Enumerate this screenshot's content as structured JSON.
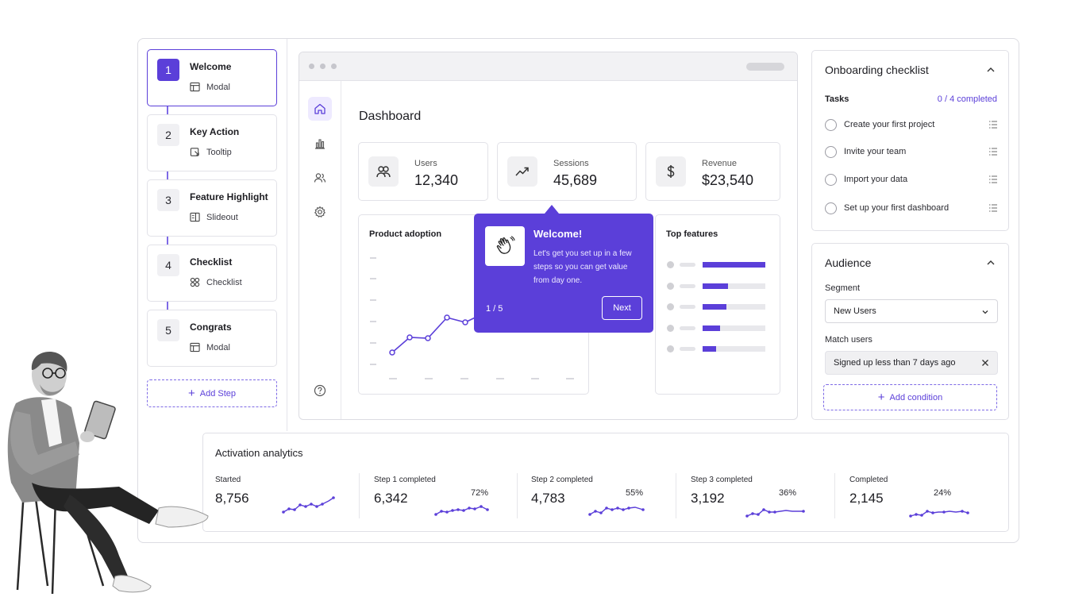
{
  "steps": [
    {
      "num": "1",
      "title": "Welcome",
      "type": "Modal",
      "active": true
    },
    {
      "num": "2",
      "title": "Key Action",
      "type": "Tooltip"
    },
    {
      "num": "3",
      "title": "Feature Highlight",
      "type": "Slideout"
    },
    {
      "num": "4",
      "title": "Checklist",
      "type": "Checklist"
    },
    {
      "num": "5",
      "title": "Congrats",
      "type": "Modal"
    }
  ],
  "add_step_label": "Add Step",
  "dashboard": {
    "title": "Dashboard",
    "stats": [
      {
        "label": "Users",
        "value": "12,340",
        "icon": "users-icon"
      },
      {
        "label": "Sessions",
        "value": "45,689",
        "icon": "trending-up-icon"
      },
      {
        "label": "Revenue",
        "value": "$23,540",
        "icon": "dollar-icon"
      }
    ],
    "product_adoption_title": "Product adoption",
    "top_features_title": "Top features",
    "top_features_levels": [
      1.0,
      0.4,
      0.38,
      0.28,
      0.22
    ]
  },
  "tooltip": {
    "title": "Welcome!",
    "body": "Let's get you set up in a few steps so you can get value from day one.",
    "counter": "1 / 5",
    "next_label": "Next"
  },
  "checklist": {
    "title": "Onboarding checklist",
    "tasks_label": "Tasks",
    "progress": "0 / 4 completed",
    "tasks": [
      "Create your first project",
      "Invite your team",
      "Import your data",
      "Set up your first dashboard"
    ]
  },
  "audience": {
    "title": "Audience",
    "segment_label": "Segment",
    "segment_value": "New Users",
    "match_label": "Match users",
    "condition": "Signed up less than 7 days ago",
    "add_condition_label": "Add condition"
  },
  "analytics": {
    "title": "Activation analytics",
    "metrics": [
      {
        "label": "Started",
        "value": "8,756",
        "pct": ""
      },
      {
        "label": "Step 1 completed",
        "value": "6,342",
        "pct": "72%"
      },
      {
        "label": "Step 2 completed",
        "value": "4,783",
        "pct": "55%"
      },
      {
        "label": "Step 3 completed",
        "value": "3,192",
        "pct": "36%"
      },
      {
        "label": "Completed",
        "value": "2,145",
        "pct": "24%"
      }
    ]
  },
  "colors": {
    "accent": "#5b3fd9",
    "accent_light": "#eeeaff",
    "border": "#e2e2e8"
  }
}
